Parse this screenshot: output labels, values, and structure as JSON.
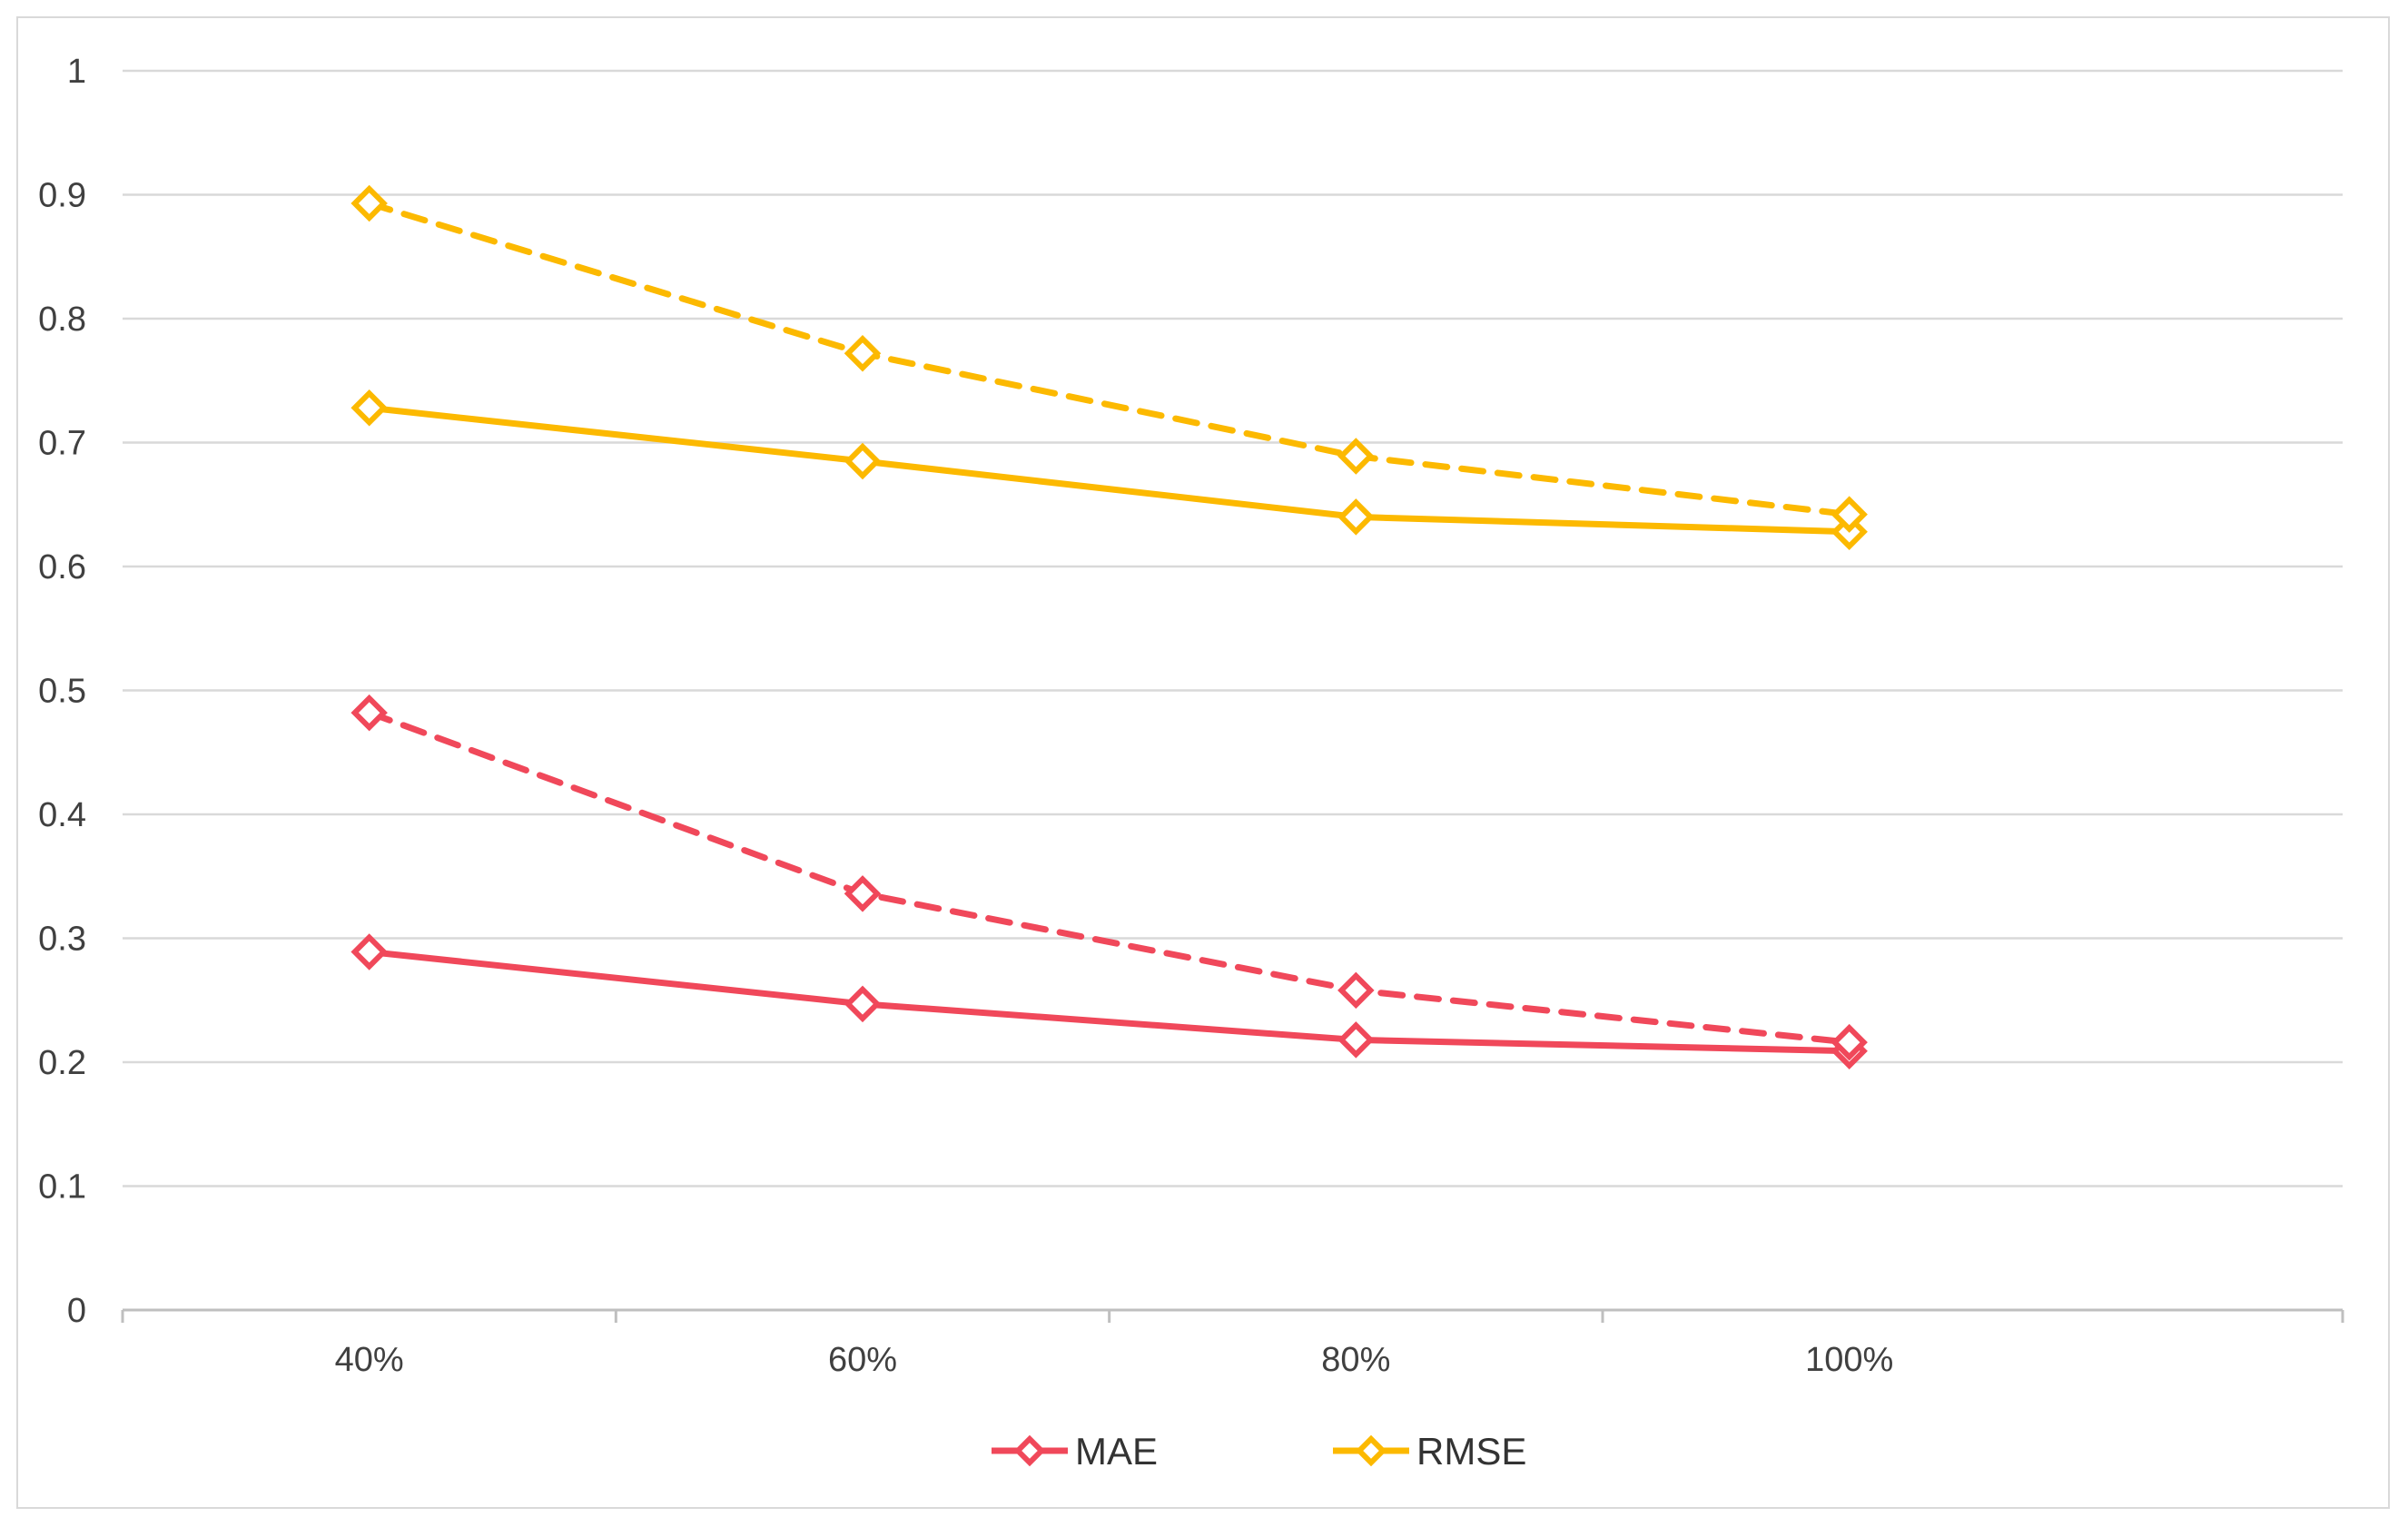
{
  "chart_data": {
    "type": "line",
    "categories": [
      "40%",
      "60%",
      "80%",
      "100%"
    ],
    "ylim": [
      0,
      1
    ],
    "yticks": [
      "0",
      "0.1",
      "0.2",
      "0.3",
      "0.4",
      "0.5",
      "0.6",
      "0.7",
      "0.8",
      "0.9",
      "1"
    ],
    "grid": true,
    "legend_position": "bottom",
    "series": [
      {
        "name": "MAE",
        "legend": true,
        "color": "#f0485a",
        "dash": false,
        "values": [
          0.289,
          0.247,
          0.218,
          0.209
        ]
      },
      {
        "name": "MAE",
        "legend": false,
        "color": "#f0485a",
        "dash": true,
        "values": [
          0.482,
          0.336,
          0.258,
          0.216
        ]
      },
      {
        "name": "RMSE",
        "legend": true,
        "color": "#fcb900",
        "dash": false,
        "values": [
          0.728,
          0.685,
          0.64,
          0.628
        ]
      },
      {
        "name": "RMSE",
        "legend": false,
        "color": "#fcb900",
        "dash": true,
        "values": [
          0.893,
          0.772,
          0.689,
          0.642
        ]
      }
    ],
    "legend": [
      {
        "label": "MAE",
        "color": "#f0485a"
      },
      {
        "label": "RMSE",
        "color": "#fcb900"
      }
    ],
    "marker": "diamond-icon"
  }
}
